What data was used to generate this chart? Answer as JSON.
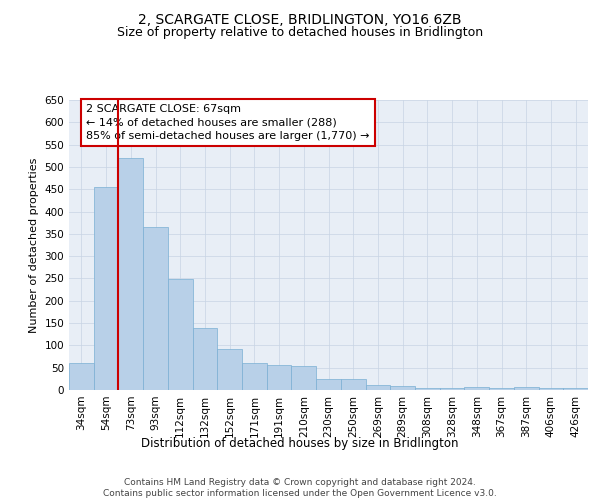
{
  "title": "2, SCARGATE CLOSE, BRIDLINGTON, YO16 6ZB",
  "subtitle": "Size of property relative to detached houses in Bridlington",
  "xlabel": "Distribution of detached houses by size in Bridlington",
  "ylabel": "Number of detached properties",
  "categories": [
    "34sqm",
    "54sqm",
    "73sqm",
    "93sqm",
    "112sqm",
    "132sqm",
    "152sqm",
    "171sqm",
    "191sqm",
    "210sqm",
    "230sqm",
    "250sqm",
    "269sqm",
    "289sqm",
    "308sqm",
    "328sqm",
    "348sqm",
    "367sqm",
    "387sqm",
    "406sqm",
    "426sqm"
  ],
  "values": [
    60,
    455,
    520,
    365,
    248,
    140,
    92,
    60,
    57,
    53,
    25,
    25,
    11,
    9,
    5,
    5,
    7,
    4,
    6,
    4,
    4
  ],
  "bar_color": "#b8d0e8",
  "bar_edge_color": "#7aafd4",
  "grid_color": "#c8d4e4",
  "bg_color": "#e8eef6",
  "vline_x": 1.5,
  "vline_color": "#cc0000",
  "annotation_text": "2 SCARGATE CLOSE: 67sqm\n← 14% of detached houses are smaller (288)\n85% of semi-detached houses are larger (1,770) →",
  "annotation_box_color": "#cc0000",
  "ylim": [
    0,
    650
  ],
  "yticks": [
    0,
    50,
    100,
    150,
    200,
    250,
    300,
    350,
    400,
    450,
    500,
    550,
    600,
    650
  ],
  "footer": "Contains HM Land Registry data © Crown copyright and database right 2024.\nContains public sector information licensed under the Open Government Licence v3.0.",
  "title_fontsize": 10,
  "subtitle_fontsize": 9,
  "xlabel_fontsize": 8.5,
  "ylabel_fontsize": 8,
  "tick_fontsize": 7.5,
  "annotation_fontsize": 8,
  "footer_fontsize": 6.5
}
